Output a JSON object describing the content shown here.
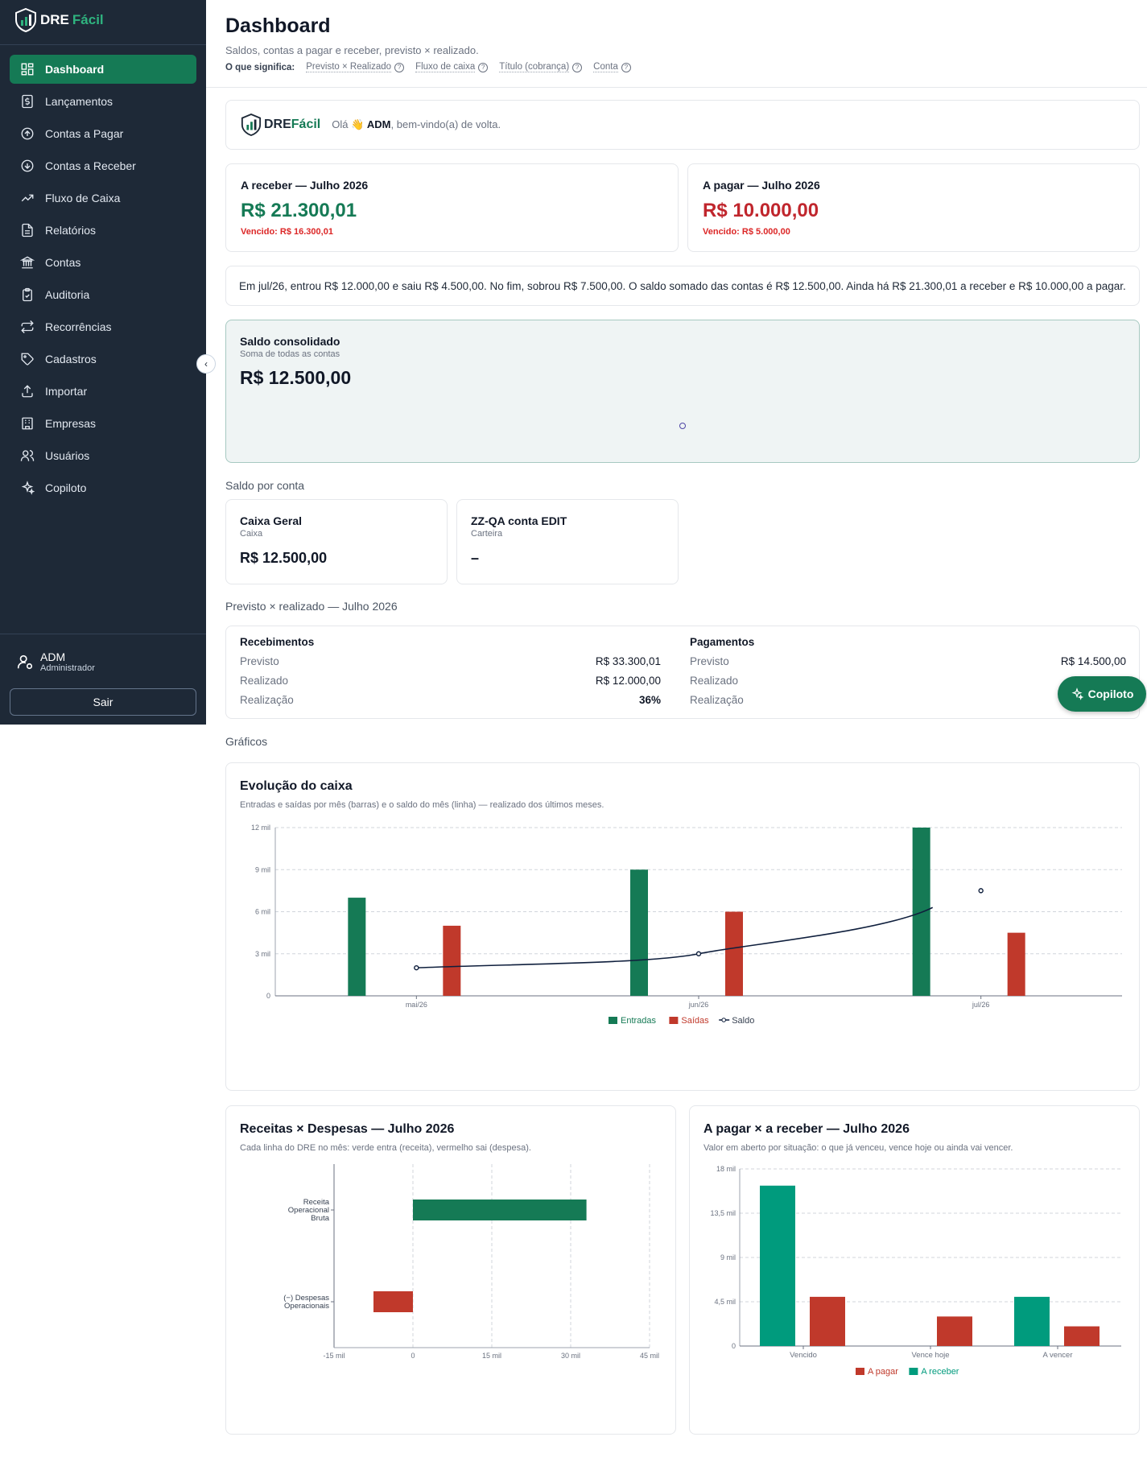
{
  "brand": {
    "part1": "DRE",
    "part2": "Fácil"
  },
  "sidebar": {
    "items": [
      {
        "label": "Dashboard",
        "icon": "dashboard-icon",
        "active": true
      },
      {
        "label": "Lançamentos",
        "icon": "dollar-icon"
      },
      {
        "label": "Contas a Pagar",
        "icon": "arrow-up-circle-icon"
      },
      {
        "label": "Contas a Receber",
        "icon": "arrow-down-circle-icon"
      },
      {
        "label": "Fluxo de Caixa",
        "icon": "trending-up-icon"
      },
      {
        "label": "Relatórios",
        "icon": "file-text-icon"
      },
      {
        "label": "Contas",
        "icon": "bank-icon"
      },
      {
        "label": "Auditoria",
        "icon": "clipboard-check-icon"
      },
      {
        "label": "Recorrências",
        "icon": "repeat-icon"
      },
      {
        "label": "Cadastros",
        "icon": "tag-icon"
      },
      {
        "label": "Importar",
        "icon": "upload-icon"
      },
      {
        "label": "Empresas",
        "icon": "building-icon"
      },
      {
        "label": "Usuários",
        "icon": "users-icon"
      },
      {
        "label": "Copiloto",
        "icon": "sparkles-icon"
      }
    ],
    "user": {
      "name": "ADM",
      "role": "Administrador"
    },
    "logout": "Sair"
  },
  "header": {
    "title": "Dashboard",
    "subtitle": "Saldos, contas a pagar e receber, previsto × realizado.",
    "meaning_label": "O que significa:",
    "terms": [
      "Previsto × Realizado",
      "Fluxo de caixa",
      "Título (cobrança)",
      "Conta"
    ]
  },
  "welcome": {
    "greeting": "Olá 👋",
    "user": "ADM",
    "rest": ", bem-vindo(a) de volta."
  },
  "kpis": {
    "receber": {
      "title": "A receber — Julho 2026",
      "value": "R$ 21.300,01",
      "overdue": "Vencido: R$ 16.300,01",
      "color": "#157a55"
    },
    "pagar": {
      "title": "A pagar — Julho 2026",
      "value": "R$ 10.000,00",
      "overdue": "Vencido: R$ 5.000,00",
      "color": "#c0262d"
    }
  },
  "summary": "Em jul/26, entrou R$ 12.000,00 e saiu R$ 4.500,00. No fim, sobrou R$ 7.500,00. O saldo somado das contas é R$ 12.500,00. Ainda há R$ 21.300,01 a receber e R$ 10.000,00 a pagar.",
  "saldo": {
    "title": "Saldo consolidado",
    "subtitle": "Soma de todas as contas",
    "value": "R$ 12.500,00"
  },
  "accounts": {
    "label": "Saldo por conta",
    "items": [
      {
        "name": "Caixa Geral",
        "type": "Caixa",
        "value": "R$ 12.500,00"
      },
      {
        "name": "ZZ-QA conta EDIT",
        "type": "Carteira",
        "value": "–"
      }
    ]
  },
  "prev_real": {
    "label": "Previsto × realizado — Julho 2026",
    "recebimentos": {
      "title": "Recebimentos",
      "rows": [
        {
          "label": "Previsto",
          "value": "R$ 33.300,01"
        },
        {
          "label": "Realizado",
          "value": "R$ 12.000,00"
        },
        {
          "label": "Realização",
          "value": "36%"
        }
      ]
    },
    "pagamentos": {
      "title": "Pagamentos",
      "rows": [
        {
          "label": "Previsto",
          "value": "R$ 14.500,00"
        },
        {
          "label": "Realizado",
          "value": ""
        },
        {
          "label": "Realização",
          "value": ""
        }
      ]
    }
  },
  "copilot_button": "Copiloto",
  "graficos_label": "Gráficos",
  "colors": {
    "entradas": "#157a55",
    "saidas": "#c0392b",
    "saldo_line": "#0f1f3d",
    "teal": "#009b7d"
  },
  "chart_data": [
    {
      "type": "bar",
      "title": "Evolução do caixa",
      "subtitle": "Entradas e saídas por mês (barras) e o saldo do mês (linha) — realizado dos últimos meses.",
      "categories": [
        "mai/26",
        "jun/26",
        "jul/26"
      ],
      "series": [
        {
          "name": "Entradas",
          "values": [
            7000,
            9000,
            12000
          ]
        },
        {
          "name": "Saídas",
          "values": [
            5000,
            6000,
            4500
          ]
        },
        {
          "name": "Saldo",
          "values": [
            2000,
            3000,
            7500
          ],
          "kind": "line"
        }
      ],
      "ylim": [
        0,
        12000
      ],
      "yticks": [
        "0",
        "3 mil",
        "6 mil",
        "9 mil",
        "12 mil"
      ],
      "grid": true,
      "legend": "bottom"
    },
    {
      "type": "bar",
      "orientation": "horizontal",
      "title": "Receitas × Despesas — Julho 2026",
      "subtitle": "Cada linha do DRE no mês: verde entra (receita), vermelho sai (despesa).",
      "categories": [
        "Receita Operacional Bruta",
        "(−) Despesas Operacionais"
      ],
      "values": [
        33000,
        -7500
      ],
      "xlim": [
        -15000,
        45000
      ],
      "xticks": [
        "-15 mil",
        "0",
        "15 mil",
        "30 mil",
        "45 mil"
      ],
      "grid": true
    },
    {
      "type": "bar",
      "title": "A pagar × a receber — Julho 2026",
      "subtitle": "Valor em aberto por situação: o que já venceu, vence hoje ou ainda vai vencer.",
      "categories": [
        "Vencido",
        "Vence hoje",
        "A vencer"
      ],
      "series": [
        {
          "name": "A receber",
          "values": [
            16300,
            0,
            5000
          ]
        },
        {
          "name": "A pagar",
          "values": [
            5000,
            3000,
            2000
          ]
        }
      ],
      "ylim": [
        0,
        18000
      ],
      "yticks": [
        "0",
        "4,5 mil",
        "9 mil",
        "13,5 mil",
        "18 mil"
      ],
      "grid": true,
      "legend": "bottom"
    }
  ]
}
